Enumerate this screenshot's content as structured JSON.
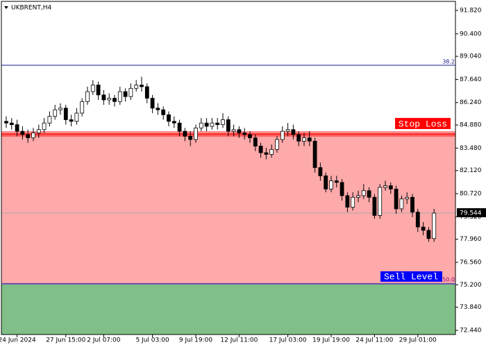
{
  "chart_data": {
    "type": "candlestick",
    "title": "UKBRENT,H4",
    "categories": [
      null,
      null,
      "24 Jun 2024",
      null,
      null,
      null,
      null,
      null,
      null,
      null,
      null,
      "27 Jun 15:00",
      null,
      null,
      null,
      null,
      null,
      null,
      "2 Jul 07:00",
      null,
      null,
      null,
      null,
      null,
      null,
      null,
      null,
      "5 Jul 03:00",
      null,
      null,
      null,
      null,
      null,
      null,
      null,
      "9 Jul 19:00",
      null,
      null,
      null,
      null,
      null,
      null,
      null,
      "12 Jul 11:00",
      null,
      null,
      null,
      null,
      null,
      null,
      null,
      null,
      "17 Jul 03:00",
      null,
      null,
      null,
      null,
      null,
      null,
      null,
      "19 Jul 19:00",
      null,
      null,
      null,
      null,
      null,
      null,
      null,
      "24 Jul 11:00",
      null,
      null,
      null,
      null,
      null,
      null,
      null,
      "29 Jul 01:00",
      null,
      null,
      null
    ],
    "open": [
      85.1,
      85.0,
      84.9,
      84.5,
      84.3,
      84.1,
      84.4,
      84.6,
      85.0,
      85.4,
      85.8,
      85.9,
      85.2,
      85.1,
      85.6,
      86.3,
      86.9,
      87.3,
      86.7,
      86.4,
      86.5,
      86.3,
      86.9,
      86.6,
      87.1,
      87.3,
      87.2,
      86.5,
      85.9,
      85.8,
      85.5,
      85.1,
      85.0,
      84.5,
      84.2,
      84.0,
      84.7,
      85.0,
      84.8,
      85.0,
      84.9,
      85.2,
      84.5,
      84.6,
      84.4,
      84.3,
      84.1,
      83.6,
      83.2,
      83.1,
      83.4,
      84.0,
      84.5,
      84.6,
      84.3,
      83.9,
      84.1,
      83.9,
      82.3,
      81.8,
      81.0,
      81.5,
      81.4,
      80.6,
      79.9,
      80.5,
      80.6,
      80.9,
      80.5,
      79.4,
      81.1,
      81.2,
      81.0,
      79.8,
      80.4,
      80.5,
      79.6,
      78.7,
      78.5,
      78.0
    ],
    "high": [
      85.4,
      85.3,
      85.2,
      84.8,
      84.6,
      84.7,
      84.9,
      85.3,
      85.7,
      86.1,
      86.2,
      86.1,
      85.5,
      85.9,
      86.5,
      87.2,
      87.6,
      87.5,
      87.0,
      86.8,
      86.7,
      87.2,
      87.1,
      87.4,
      87.6,
      87.8,
      87.4,
      86.7,
      86.2,
      86.0,
      85.7,
      85.4,
      85.2,
      84.7,
      84.5,
      84.9,
      85.3,
      85.3,
      85.3,
      85.3,
      85.6,
      85.4,
      84.9,
      84.8,
      84.7,
      84.5,
      84.3,
      83.8,
      83.5,
      83.7,
      84.2,
      84.8,
      85.0,
      84.9,
      84.5,
      84.4,
      84.5,
      84.1,
      82.6,
      82.0,
      81.8,
      81.8,
      81.6,
      80.8,
      80.8,
      80.9,
      81.3,
      81.1,
      80.7,
      81.3,
      81.5,
      81.4,
      81.2,
      80.6,
      80.8,
      80.7,
      79.8,
      79.0,
      78.7,
      79.8
    ],
    "low": [
      84.7,
      84.6,
      84.2,
      84.0,
      83.8,
      83.9,
      84.1,
      84.4,
      84.8,
      85.2,
      85.5,
      84.9,
      84.8,
      84.9,
      85.4,
      86.1,
      86.7,
      86.4,
      86.1,
      86.1,
      86.0,
      86.1,
      86.3,
      86.4,
      86.9,
      86.9,
      86.2,
      85.6,
      85.5,
      85.2,
      84.8,
      84.7,
      84.2,
      83.9,
      83.6,
      83.8,
      84.5,
      84.5,
      84.6,
      84.6,
      84.7,
      84.2,
      84.2,
      84.1,
      84.0,
      83.8,
      83.3,
      82.9,
      82.8,
      82.9,
      83.2,
      83.8,
      84.2,
      84.0,
      83.6,
      83.6,
      83.6,
      82.0,
      81.5,
      80.8,
      80.8,
      81.1,
      80.3,
      79.6,
      79.7,
      80.2,
      80.4,
      80.2,
      79.2,
      79.2,
      80.9,
      80.7,
      79.5,
      79.6,
      80.1,
      79.3,
      78.4,
      78.2,
      77.8,
      77.8
    ],
    "close": [
      85.0,
      84.9,
      84.5,
      84.3,
      84.1,
      84.4,
      84.6,
      85.0,
      85.4,
      85.8,
      85.9,
      85.2,
      85.1,
      85.6,
      86.3,
      86.9,
      87.3,
      86.7,
      86.4,
      86.5,
      86.3,
      86.9,
      86.6,
      87.1,
      87.3,
      87.2,
      86.5,
      85.9,
      85.8,
      85.5,
      85.1,
      85.0,
      84.5,
      84.2,
      84.0,
      84.7,
      85.0,
      84.8,
      85.0,
      84.9,
      85.2,
      84.5,
      84.6,
      84.4,
      84.3,
      84.1,
      83.6,
      83.2,
      83.1,
      83.4,
      84.0,
      84.5,
      84.6,
      84.3,
      83.9,
      84.1,
      83.9,
      82.3,
      81.8,
      81.0,
      81.5,
      81.4,
      80.6,
      79.9,
      80.5,
      80.6,
      80.9,
      80.5,
      79.4,
      81.1,
      81.2,
      81.0,
      79.8,
      80.4,
      80.5,
      79.6,
      78.7,
      78.5,
      78.0,
      79.544
    ],
    "ylim": [
      72.188,
      92.367
    ],
    "yticks": [
      {
        "value": 91.82,
        "label": "91.820"
      },
      {
        "value": 90.4,
        "label": "90.400"
      },
      {
        "value": 89.04,
        "label": "89.040"
      },
      {
        "value": 87.64,
        "label": "87.640"
      },
      {
        "value": 86.24,
        "label": "86.240"
      },
      {
        "value": 84.88,
        "label": "84.880"
      },
      {
        "value": 83.48,
        "label": "83.480"
      },
      {
        "value": 82.12,
        "label": "82.120"
      },
      {
        "value": 80.72,
        "label": "80.720"
      },
      {
        "value": 79.32,
        "label": "79.320"
      },
      {
        "value": 77.96,
        "label": "77.960"
      },
      {
        "value": 76.56,
        "label": "76.560"
      },
      {
        "value": 75.2,
        "label": "75.200"
      },
      {
        "value": 73.84,
        "label": "73.840"
      },
      {
        "value": 72.44,
        "label": "72.440"
      }
    ],
    "last_price": {
      "value": 79.544,
      "label": "79.544"
    },
    "levels": [
      {
        "name": "38.2",
        "value": 88.5,
        "color": "#1a1a8c"
      },
      {
        "name": "Stop Loss",
        "value": 84.34,
        "color": "#ff0000"
      },
      {
        "name": "Sell Level",
        "value": 75.26,
        "color": "#0000ff",
        "level_label": "50.0"
      }
    ],
    "zone_colors": {
      "loss": "#ffaaaa",
      "below": "#80bf87"
    }
  }
}
